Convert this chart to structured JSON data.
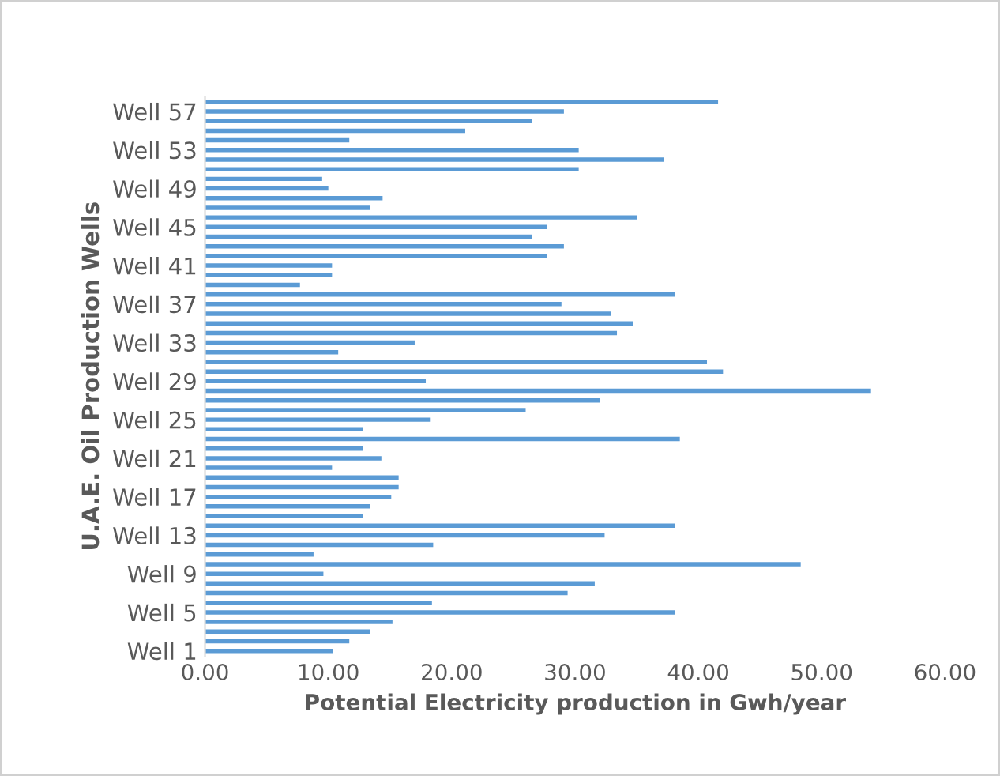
{
  "chart_data": {
    "type": "bar",
    "orientation": "horizontal",
    "xlabel": "Potential Electricity production in Gwh/year",
    "ylabel": "U.A.E. Oil Production Wells",
    "categories": [
      null,
      "Well 57",
      null,
      null,
      null,
      "Well 53",
      null,
      null,
      null,
      "Well 49",
      null,
      null,
      null,
      "Well 45",
      null,
      null,
      null,
      "Well 41",
      null,
      null,
      null,
      "Well 37",
      null,
      null,
      null,
      "Well 33",
      null,
      null,
      null,
      "Well 29",
      null,
      null,
      null,
      "Well 25",
      null,
      null,
      null,
      "Well 21",
      null,
      null,
      null,
      "Well 17",
      null,
      null,
      null,
      "Well 13",
      null,
      null,
      null,
      "Well 9",
      null,
      null,
      null,
      "Well 5",
      null,
      null,
      null,
      "Well 1"
    ],
    "values": [
      41.6,
      29.1,
      26.5,
      21.1,
      11.7,
      30.3,
      37.2,
      30.3,
      9.5,
      10.0,
      14.4,
      13.4,
      35.0,
      27.7,
      26.5,
      29.1,
      27.7,
      10.3,
      10.3,
      7.7,
      38.1,
      28.9,
      32.9,
      34.7,
      33.4,
      17.0,
      10.8,
      40.7,
      42.0,
      17.9,
      54.0,
      32.0,
      26.0,
      18.3,
      12.8,
      38.5,
      12.8,
      14.3,
      10.3,
      15.7,
      15.7,
      15.1,
      13.4,
      12.8,
      38.1,
      32.4,
      18.5,
      8.8,
      48.3,
      9.6,
      31.6,
      29.4,
      18.4,
      38.1,
      15.2,
      13.4,
      11.7,
      10.4
    ],
    "color": "#5b9bd5",
    "xlim": [
      0,
      60
    ],
    "xticks": [
      {
        "value": 0,
        "label": "0.00"
      },
      {
        "value": 10,
        "label": "10.00"
      },
      {
        "value": 20,
        "label": "20.00"
      },
      {
        "value": 30,
        "label": "30.00"
      },
      {
        "value": 40,
        "label": "40.00"
      },
      {
        "value": 50,
        "label": "50.00"
      },
      {
        "value": 60,
        "label": "60.00"
      }
    ],
    "grid": false,
    "legend": false
  }
}
